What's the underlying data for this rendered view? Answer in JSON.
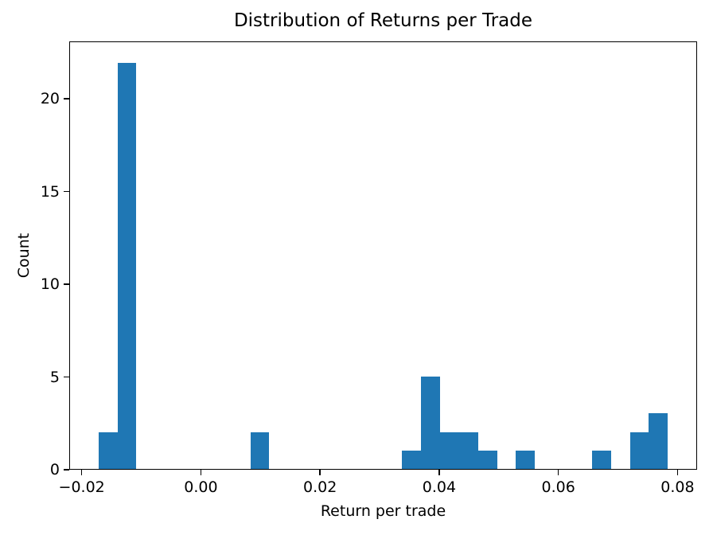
{
  "figure": {
    "background_color": "#ffffff",
    "text_color": "#000000"
  },
  "chart_data": {
    "type": "bar",
    "subtype": "histogram",
    "title": "Distribution of Returns per Trade",
    "xlabel": "Return per trade",
    "ylabel": "Count",
    "bar_color": "#1f77b4",
    "grid": false,
    "legend": null,
    "xlim": [
      -0.02209,
      0.08328
    ],
    "ylim": [
      0,
      23.1
    ],
    "bin_start": -0.0173,
    "bin_width": 0.003193,
    "counts": [
      2,
      22,
      0,
      0,
      0,
      0,
      0,
      0,
      2,
      0,
      0,
      0,
      0,
      0,
      0,
      0,
      1,
      5,
      2,
      2,
      1,
      0,
      1,
      0,
      0,
      0,
      1,
      0,
      2,
      3
    ],
    "total_count": 44,
    "xticks": [
      {
        "value": -0.02,
        "label": "−0.02"
      },
      {
        "value": 0.0,
        "label": "0.00"
      },
      {
        "value": 0.02,
        "label": "0.02"
      },
      {
        "value": 0.04,
        "label": "0.04"
      },
      {
        "value": 0.06,
        "label": "0.06"
      },
      {
        "value": 0.08,
        "label": "0.08"
      }
    ],
    "yticks": [
      {
        "value": 0,
        "label": "0"
      },
      {
        "value": 5,
        "label": "5"
      },
      {
        "value": 10,
        "label": "10"
      },
      {
        "value": 15,
        "label": "15"
      },
      {
        "value": 20,
        "label": "20"
      }
    ]
  }
}
